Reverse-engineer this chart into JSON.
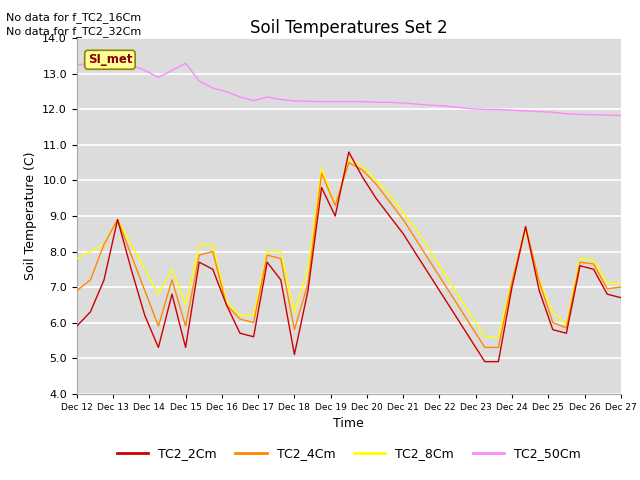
{
  "title": "Soil Temperatures Set 2",
  "xlabel": "Time",
  "ylabel": "Soil Temperature (C)",
  "ylim": [
    4.0,
    14.0
  ],
  "yticks": [
    4.0,
    5.0,
    6.0,
    7.0,
    8.0,
    9.0,
    10.0,
    11.0,
    12.0,
    13.0,
    14.0
  ],
  "background_color": "#dcdcdc",
  "annotations": [
    "No data for f_TC2_16Cm",
    "No data for f_TC2_32Cm"
  ],
  "legend_label": "SI_met",
  "series_colors": {
    "TC2_2Cm": "#cc0000",
    "TC2_4Cm": "#ff8800",
    "TC2_8Cm": "#ffff00",
    "TC2_50Cm": "#ff88ff"
  },
  "xtick_labels": [
    "Dec 12",
    "Dec 13",
    "Dec 14",
    "Dec 15",
    "Dec 16",
    "Dec 17",
    "Dec 18",
    "Dec 19",
    "Dec 20",
    "Dec 21",
    "Dec 22",
    "Dec 23",
    "Dec 24",
    "Dec 25",
    "Dec 26",
    "Dec 27"
  ],
  "TC2_2Cm": [
    5.9,
    6.3,
    7.2,
    8.9,
    7.5,
    6.2,
    5.3,
    6.8,
    5.3,
    7.7,
    7.5,
    6.5,
    5.7,
    5.6,
    7.7,
    7.2,
    5.1,
    6.9,
    9.8,
    9.0,
    10.8,
    10.1,
    9.5,
    9.0,
    8.5,
    7.9,
    7.3,
    6.7,
    6.1,
    5.5,
    4.9,
    4.9,
    7.0,
    8.7,
    6.9,
    5.8,
    5.7,
    7.6,
    7.5,
    6.8,
    6.7
  ],
  "TC2_4Cm": [
    6.9,
    7.2,
    8.2,
    8.9,
    7.9,
    6.9,
    5.9,
    7.2,
    5.9,
    7.9,
    8.0,
    6.5,
    6.1,
    6.0,
    7.9,
    7.8,
    5.8,
    7.1,
    10.2,
    9.3,
    10.5,
    10.3,
    9.9,
    9.4,
    8.9,
    8.3,
    7.7,
    7.1,
    6.5,
    5.9,
    5.3,
    5.3,
    7.15,
    8.7,
    7.15,
    6.0,
    5.85,
    7.7,
    7.65,
    6.95,
    7.0
  ],
  "TC2_8Cm": [
    7.8,
    8.0,
    8.2,
    8.9,
    8.2,
    7.5,
    6.8,
    7.5,
    6.5,
    8.2,
    8.2,
    6.6,
    6.2,
    6.2,
    8.0,
    8.0,
    6.3,
    7.5,
    10.35,
    9.3,
    10.6,
    10.4,
    10.0,
    9.6,
    9.1,
    8.6,
    8.0,
    7.4,
    6.8,
    6.2,
    5.6,
    5.6,
    7.2,
    8.6,
    7.2,
    6.3,
    5.95,
    7.8,
    7.75,
    7.1,
    7.1
  ],
  "TC2_50Cm": [
    13.25,
    13.3,
    13.35,
    13.4,
    13.25,
    13.1,
    12.9,
    13.1,
    13.3,
    12.8,
    12.6,
    12.5,
    12.35,
    12.25,
    12.35,
    12.28,
    12.24,
    12.23,
    12.22,
    12.22,
    12.22,
    12.22,
    12.2,
    12.2,
    12.18,
    12.15,
    12.12,
    12.1,
    12.06,
    12.02,
    12.0,
    12.0,
    11.98,
    11.96,
    11.94,
    11.92,
    11.88,
    11.86,
    11.85,
    11.84,
    11.83
  ]
}
